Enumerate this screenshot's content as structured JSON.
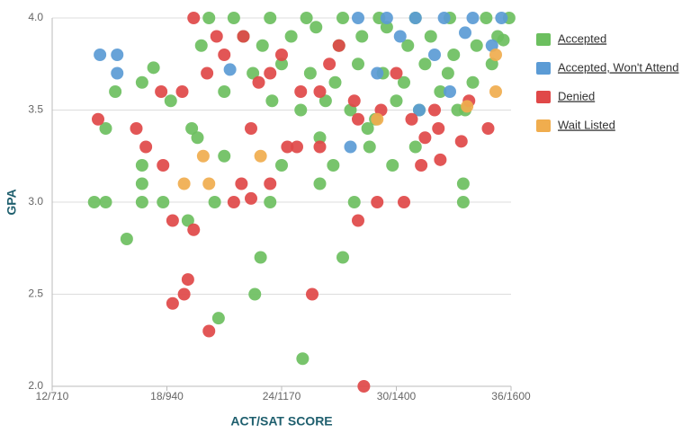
{
  "chart_data": {
    "type": "scatter",
    "x_label": "ACT/SAT SCORE",
    "y_label": "GPA",
    "xlim": [
      12,
      36
    ],
    "xticks": [
      {
        "value": 12,
        "label": "12/710"
      },
      {
        "value": 18,
        "label": "18/940"
      },
      {
        "value": 24,
        "label": "24/1170"
      },
      {
        "value": 30,
        "label": "30/1400"
      },
      {
        "value": 36,
        "label": "36/1600"
      }
    ],
    "ylim": [
      2,
      4
    ],
    "yticks": [
      {
        "value": 2,
        "label": "2.0"
      },
      2.5,
      {
        "value": 3,
        "label": "3.0"
      },
      3.5,
      {
        "value": 4,
        "label": "4.0"
      }
    ],
    "grid": true,
    "legend": "right",
    "series": [
      {
        "name": "Accepted",
        "color": "#6cbf5f",
        "x": [
          14.2,
          14.8,
          14.8,
          15.3,
          15.9,
          16.7,
          16.7,
          16.7,
          16.7,
          17.3,
          17.8,
          18.2,
          19.1,
          19.3,
          19.6,
          20.5,
          20.7,
          21.0,
          22.6,
          22.9,
          23.4,
          24.0,
          25.1,
          27.2,
          26.0,
          26.7,
          27.8,
          28.6,
          29.8,
          33.5,
          33.5,
          35.6,
          20.2,
          21.5,
          23.4,
          25.3,
          27.2,
          29.1,
          31.0,
          32.8,
          34.7,
          35.9,
          22.0,
          23.0,
          24.5,
          25.8,
          27.0,
          28.2,
          29.5,
          30.6,
          31.8,
          33.0,
          34.2,
          35.3,
          22.5,
          24.0,
          25.5,
          26.8,
          28.0,
          29.3,
          30.4,
          31.5,
          32.7,
          34.0,
          35.0,
          23.5,
          25.0,
          26.3,
          27.6,
          28.9,
          30.0,
          31.2,
          32.3,
          33.6,
          26.0,
          28.5,
          31.0,
          33.2,
          21.0,
          19.8
        ],
        "y": [
          3.0,
          3.0,
          3.4,
          3.6,
          2.8,
          3.0,
          3.1,
          3.2,
          3.65,
          3.73,
          3.0,
          3.55,
          2.9,
          3.4,
          3.35,
          3.0,
          2.37,
          3.25,
          2.5,
          2.7,
          3.0,
          3.2,
          2.15,
          2.7,
          3.1,
          3.2,
          3.0,
          3.3,
          3.2,
          3.1,
          3.0,
          3.88,
          4.0,
          4.0,
          4.0,
          4.0,
          4.0,
          4.0,
          4.0,
          4.0,
          4.0,
          4.0,
          3.9,
          3.85,
          3.9,
          3.95,
          3.85,
          3.9,
          3.95,
          3.85,
          3.9,
          3.8,
          3.85,
          3.9,
          3.7,
          3.75,
          3.7,
          3.65,
          3.75,
          3.7,
          3.65,
          3.75,
          3.7,
          3.65,
          3.75,
          3.55,
          3.5,
          3.55,
          3.5,
          3.45,
          3.55,
          3.5,
          3.6,
          3.5,
          3.35,
          3.4,
          3.3,
          3.5,
          3.6,
          3.85
        ]
      },
      {
        "name": "Accepted, Won't Attend",
        "color": "#5b9bd5",
        "x": [
          14.5,
          15.4,
          15.4,
          21.3,
          27.6,
          31.2,
          32.8,
          28.0,
          29.5,
          31.0,
          32.5,
          34.0,
          35.5,
          30.2,
          33.6,
          35.0,
          29.0,
          32.0
        ],
        "y": [
          3.8,
          3.8,
          3.7,
          3.72,
          3.3,
          3.5,
          3.6,
          4.0,
          4.0,
          4.0,
          4.0,
          4.0,
          4.0,
          3.9,
          3.92,
          3.85,
          3.7,
          3.8
        ]
      },
      {
        "name": "Denied",
        "color": "#e04848",
        "x": [
          14.4,
          16.4,
          16.9,
          17.8,
          18.3,
          18.3,
          18.9,
          19.1,
          19.4,
          20.2,
          23.4,
          25.6,
          28.0,
          28.3,
          29.0,
          30.4,
          31.3,
          32.3,
          33.4,
          34.8,
          17.7,
          22.4,
          24.3,
          26.0,
          21.9,
          24.8,
          21.5,
          22.4,
          19.4,
          20.1,
          21.0,
          23.4,
          25.0,
          26.5,
          27.8,
          29.2,
          30.8,
          32.2,
          33.8,
          22.0,
          24.0,
          26.0,
          28.0,
          30.0,
          32.0,
          18.8,
          20.6,
          22.8,
          27.0,
          31.5
        ],
        "y": [
          3.45,
          3.4,
          3.3,
          3.2,
          2.9,
          2.45,
          2.5,
          2.58,
          2.85,
          2.3,
          3.1,
          2.5,
          2.9,
          2.0,
          3.0,
          3.0,
          3.2,
          3.23,
          3.33,
          3.4,
          3.6,
          3.4,
          3.3,
          3.3,
          3.1,
          3.3,
          3.0,
          3.02,
          4.0,
          3.7,
          3.8,
          3.7,
          3.6,
          3.75,
          3.55,
          3.5,
          3.45,
          3.4,
          3.55,
          3.9,
          3.8,
          3.6,
          3.45,
          3.7,
          3.5,
          3.6,
          3.9,
          3.65,
          3.85,
          3.35
        ]
      },
      {
        "name": "Wait Listed",
        "color": "#f0ad4e",
        "x": [
          19.9,
          20.2,
          22.9,
          18.9,
          35.2,
          35.2,
          29.0,
          33.7
        ],
        "y": [
          3.25,
          3.1,
          3.25,
          3.1,
          3.6,
          3.8,
          3.45,
          3.52
        ]
      }
    ]
  }
}
